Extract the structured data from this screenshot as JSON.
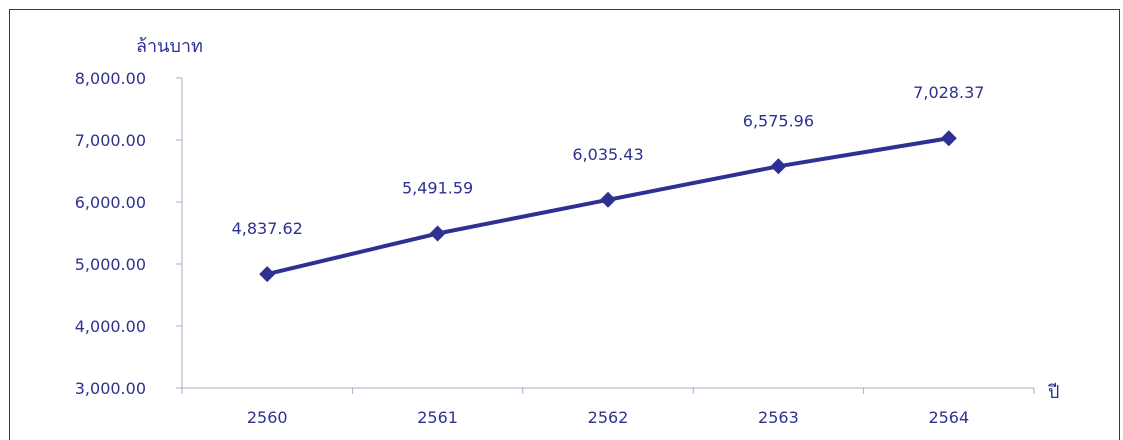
{
  "chart_data": {
    "type": "line",
    "xlabel": "ปี",
    "ylabel": "ล้านบาท",
    "categories": [
      "2560",
      "2561",
      "2562",
      "2563",
      "2564"
    ],
    "series": [
      {
        "values": [
          4837.62,
          5491.59,
          6035.43,
          6575.96,
          7028.37
        ],
        "value_labels": [
          "4,837.62",
          "5,491.59",
          "6,035.43",
          "6,575.96",
          "7,028.37"
        ]
      }
    ],
    "ylim": [
      3000,
      8000
    ],
    "yticks": [
      3000,
      4000,
      5000,
      6000,
      7000,
      8000
    ],
    "ytick_labels": [
      "3,000.00",
      "4,000.00",
      "5,000.00",
      "6,000.00",
      "7,000.00",
      "8,000.00"
    ],
    "grid": false,
    "marker": "diamond",
    "color": "#2e3192"
  }
}
